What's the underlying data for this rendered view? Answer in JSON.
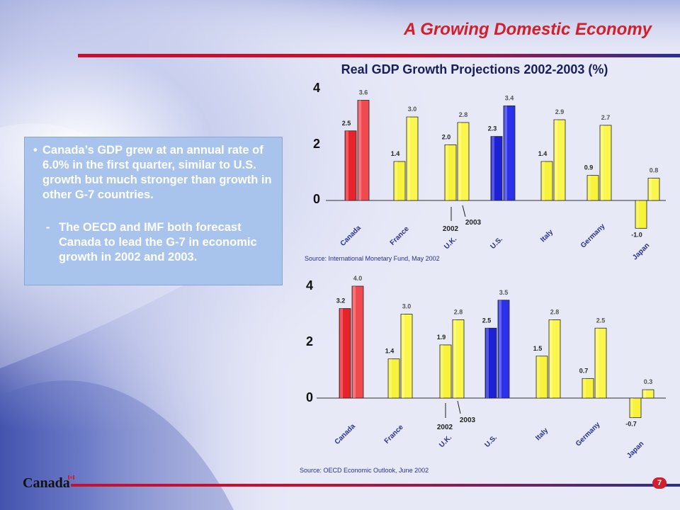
{
  "slide": {
    "title": "A Growing Domestic Economy",
    "chart_title": "Real GDP Growth Projections 2002-2003 (%)",
    "bullet_text": "Canada’s GDP grew at an annual rate of 6.0% in the first quarter, similar to U.S. growth but much stronger than growth in other G-7 countries.",
    "sub_bullet_text": "The OECD and IMF both forecast Canada to lead the G-7 in economic growth in 2002 and 2003.",
    "bullet_marker": "•",
    "sub_marker": "-",
    "brand": "Canada",
    "page_number": "7"
  },
  "colors": {
    "canada": "#e8232b",
    "us": "#1d22d6",
    "other": "#f7f23a",
    "title_red": "#d11f2b",
    "navy": "#1a1f5c"
  },
  "chart_data": [
    {
      "type": "bar",
      "categories": [
        "Canada",
        "France",
        "U.K.",
        "U.S.",
        "Italy",
        "Germany",
        "Japan"
      ],
      "series": [
        {
          "name": "2002",
          "values": [
            2.5,
            1.4,
            2.0,
            2.3,
            1.4,
            0.9,
            -1.0
          ]
        },
        {
          "name": "2003",
          "values": [
            3.6,
            3.0,
            2.8,
            3.4,
            2.9,
            2.7,
            0.8
          ]
        }
      ],
      "value_labels": {
        "2002": [
          "2.5",
          "1.4",
          "2.0",
          "2.3",
          "1.4",
          "0.9",
          "-1.0"
        ],
        "2003": [
          "3.6",
          "3.0",
          "2.8",
          "3.4",
          "2.9",
          "2.7",
          "0.8"
        ]
      },
      "yticks": [
        "4",
        "2",
        "0"
      ],
      "ylim": [
        -1.5,
        4
      ],
      "source": "Source: International Monetary Fund, May 2002",
      "annotations": [
        "2002",
        "2003"
      ]
    },
    {
      "type": "bar",
      "categories": [
        "Canada",
        "France",
        "U.K.",
        "U.S.",
        "Italy",
        "Germany",
        "Japan"
      ],
      "series": [
        {
          "name": "2002",
          "values": [
            3.2,
            1.4,
            1.9,
            2.5,
            1.5,
            0.7,
            -0.7
          ]
        },
        {
          "name": "2003",
          "values": [
            4.0,
            3.0,
            2.8,
            3.5,
            2.8,
            2.5,
            0.3
          ]
        }
      ],
      "value_labels": {
        "2002": [
          "3.2",
          "1.4",
          "1.9",
          "2.5",
          "1.5",
          "0.7",
          "-0.7"
        ],
        "2003": [
          "4.0",
          "3.0",
          "2.8",
          "3.5",
          "2.8",
          "2.5",
          "0.3"
        ]
      },
      "yticks": [
        "4",
        "2",
        "0"
      ],
      "ylim": [
        -1.0,
        4
      ],
      "source": "Source: OECD Economic Outlook, June 2002",
      "annotations": [
        "2002",
        "2003"
      ]
    }
  ]
}
